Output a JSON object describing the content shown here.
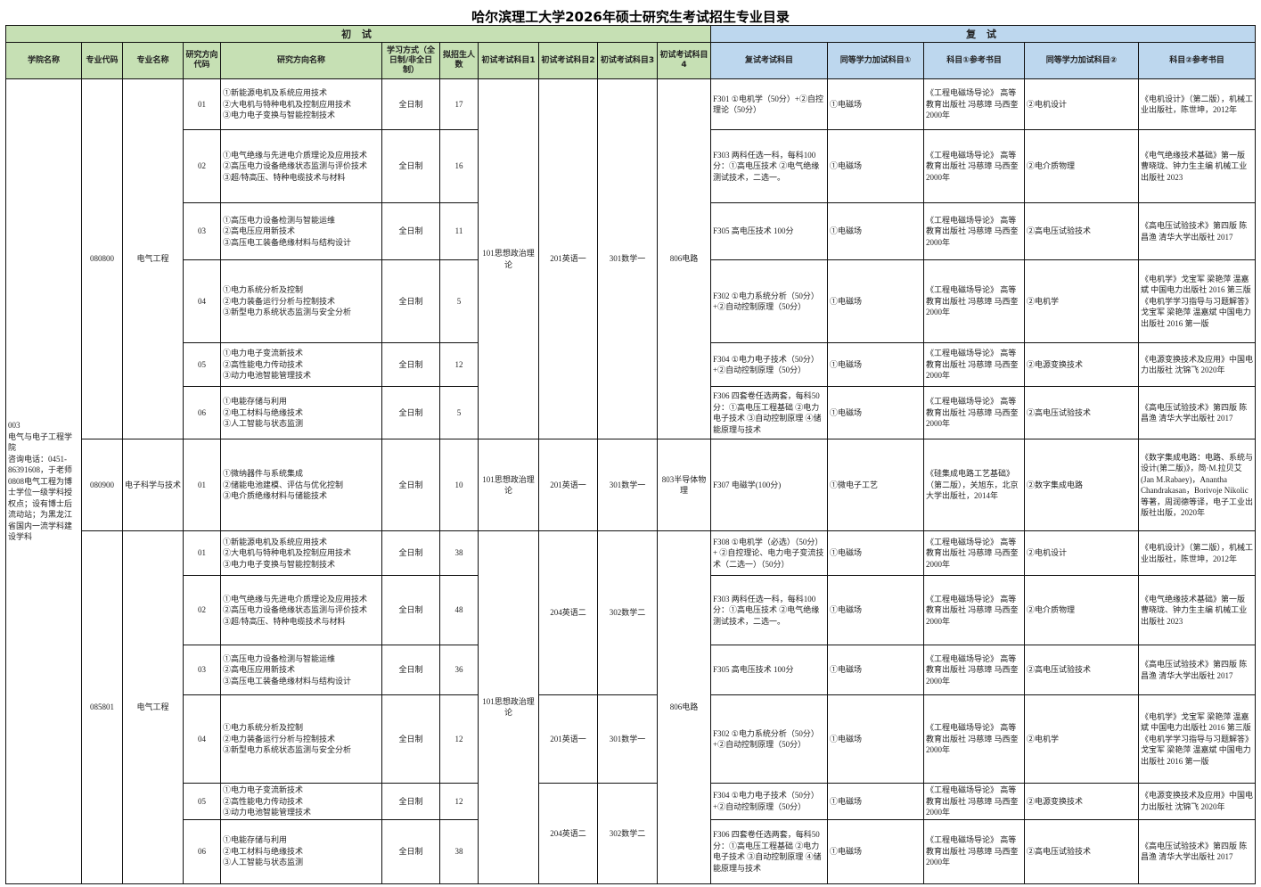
{
  "title": "哈尔滨理工大学2026年硕士研究生考试招生专业目录",
  "colors": {
    "initial_header": "#c6e0b4",
    "retest_header": "#bdd7ee"
  },
  "sections": {
    "initial": "初 试",
    "retest": "复 试"
  },
  "headers": [
    "学院名称",
    "专业代码",
    "专业名称",
    "研究方向代码",
    "研究方向名称",
    "学习方式（全日制/非全日制）",
    "拟招生人数",
    "初试考试科目1",
    "初试考试科目2",
    "初试考试科目3",
    "初试考试科目4",
    "复试考试科目",
    "同等学力加试科目①",
    "科目①参考书目",
    "同等学力加试科目②",
    "科目②参考书目"
  ],
  "college": "003\n电气与电子工程学院\n咨询电话：0451-86391608，于老师\n0808电气工程为博士学位一级学科授权点；设有博士后流动站；为黑龙江省国内一流学科建设学科",
  "majors": [
    {
      "code": "080800",
      "name": "电气工程",
      "politics": "101思想政治理论",
      "subject4": "806电路",
      "directions": [
        {
          "code": "01",
          "name": "①新能源电机及系统应用技术\n②大电机与特种电机及控制应用技术\n③电力电子变换与智能控制技术",
          "mode": "全日制",
          "quota": "17",
          "english": "201英语一",
          "math": "301数学一",
          "retest": "F301 ①电机学（50分）+②自控理论（50分）",
          "add1": "①电磁场",
          "ref1": "《工程电磁场导论》 高等教育出版社  冯慈璋 马西奎2000年",
          "add2": "②电机设计",
          "ref2": "《电机设计》（第二版），机械工业出版社，陈世坤，2012年"
        },
        {
          "code": "02",
          "name": "①电气绝缘与先进电介质理论及应用技术\n②高压电力设备绝缘状态监测与评价技术\n③超/特高压、特种电缆技术与材料",
          "mode": "全日制",
          "quota": "16",
          "english": "201英语一",
          "math": "301数学一",
          "retest": "F303 两科任选一科，每科100分：①高电压技术  ②电气绝缘测试技术，二选一。",
          "add1": "①电磁场",
          "ref1": "《工程电磁场导论》 高等教育出版社  冯慈璋 马西奎2000年",
          "add2": "②电介质物理",
          "ref2": "《电气绝缘技术基础》第一版 曹晓珑、钟力生主编 机械工业出版社 2023"
        },
        {
          "code": "03",
          "name": "①高压电力设备检测与智能运维\n②高电压应用新技术\n③高压电工装备绝缘材料与结构设计",
          "mode": "全日制",
          "quota": "11",
          "english": "201英语一",
          "math": "301数学一",
          "retest": "F305 高电压技术 100分",
          "add1": "①电磁场",
          "ref1": "《工程电磁场导论》 高等教育出版社  冯慈璋 马西奎2000年",
          "add2": "②高电压试验技术",
          "ref2": "《高电压试验技术》第四版 陈昌渔 清华大学出版社 2017"
        },
        {
          "code": "04",
          "name": "①电力系统分析及控制\n②电力装备运行分析与控制技术\n③新型电力系统状态监测与安全分析",
          "mode": "全日制",
          "quota": "5",
          "english": "201英语一",
          "math": "301数学一",
          "retest": "F302 ①电力系统分析（50分）+②自动控制原理（50分）",
          "add1": "①电磁场",
          "ref1": "《工程电磁场导论》 高等教育出版社  冯慈璋 马西奎2000年",
          "add2": "②电机学",
          "ref2": "《电机学》戈宝军 梁艳萍 温嘉斌 中国电力出版社 2016 第三版\n《电机学学习指导与习题解答》戈宝军 梁艳萍 温嘉斌 中国电力出版社  2016 第一版"
        },
        {
          "code": "05",
          "name": "①电力电子变流新技术\n②高性能电力传动技术\n③动力电池智能管理技术",
          "mode": "全日制",
          "quota": "12",
          "english": "201英语一",
          "math": "301数学一",
          "retest": "F304 ①电力电子技术（50分）+②自动控制原理（50分）",
          "add1": "①电磁场",
          "ref1": "《工程电磁场导论》 高等教育出版社  冯慈璋 马西奎2000年",
          "add2": "②电源变换技术",
          "ref2": "《电源变换技术及应用》中国电力出版社 沈锦飞 2020年"
        },
        {
          "code": "06",
          "name": "①电能存储与利用\n②电工材料与绝缘技术\n③人工智能与状态监测",
          "mode": "全日制",
          "quota": "5",
          "english": "201英语一",
          "math": "301数学一",
          "retest": "F306 四套卷任选两套，每科50分：①高电压工程基础 ②电力电子技术 ③自动控制原理 ④储能原理与技术",
          "add1": "①电磁场",
          "ref1": "《工程电磁场导论》 高等教育出版社  冯慈璋 马西奎2000年",
          "add2": "②高电压试验技术",
          "ref2": "《高电压试验技术》第四版 陈昌渔 清华大学出版社 2017"
        }
      ]
    },
    {
      "code": "080900",
      "name": "电子科学与技术",
      "politics": "101思想政治理论",
      "subject4": "803半导体物理",
      "directions": [
        {
          "code": "01",
          "name": "①微纳器件与系统集成\n②储能电池建模、评估与优化控制\n③电介质绝缘材料与储能技术",
          "mode": "全日制",
          "quota": "10",
          "english": "201英语一",
          "math": "301数学一",
          "retest": "F307 电磁学(100分)",
          "add1": "①微电子工艺",
          "ref1": "《硅集成电路工艺基础》（第二版），关旭东，北京大学出版社，2014年",
          "add2": "②数字集成电路",
          "ref2": "《数字集成电路：电路、系统与设计(第二版)》，简·M.拉贝艾(Jan M.Rabaey)，Anantha Chandrakasan，Borivoje Nikolic等著，周润德等译，电子工业出版社出版，2020年"
        }
      ]
    },
    {
      "code": "085801",
      "name": "电气工程",
      "politics": "101思想政治理论",
      "subject4": "806电路",
      "directions": [
        {
          "code": "01",
          "name": "①新能源电机及系统应用技术\n②大电机与特种电机及控制应用技术\n③电力电子变换与智能控制技术",
          "mode": "全日制",
          "quota": "38",
          "english": "204英语二",
          "math": "302数学二",
          "retest": "F308 ①电机学（必选）（50分）+ ②自控理论、电力电子变流技术（二选一）（50分）",
          "add1": "①电磁场",
          "ref1": "《工程电磁场导论》 高等教育出版社  冯慈璋 马西奎2000年",
          "add2": "②电机设计",
          "ref2": "《电机设计》（第二版），机械工业出版社，陈世坤，2012年"
        },
        {
          "code": "02",
          "name": "①电气绝缘与先进电介质理论及应用技术\n②高压电力设备绝缘状态监测与评价技术\n③超/特高压、特种电缆技术与材料",
          "mode": "全日制",
          "quota": "48",
          "english": "204英语二",
          "math": "302数学二",
          "retest": "F303 两科任选一科，每科100分：①高电压技术  ②电气绝缘测试技术，二选一。",
          "add1": "①电磁场",
          "ref1": "《工程电磁场导论》 高等教育出版社  冯慈璋 马西奎2000年",
          "add2": "②电介质物理",
          "ref2": "《电气绝缘技术基础》第一版 曹晓珑、钟力生主编 机械工业出版社 2023"
        },
        {
          "code": "03",
          "name": "①高压电力设备检测与智能运维\n②高电压应用新技术\n③高压电工装备绝缘材料与结构设计",
          "mode": "全日制",
          "quota": "36",
          "english": "204英语二",
          "math": "302数学二",
          "retest": "F305 高电压技术 100分",
          "add1": "①电磁场",
          "ref1": "《工程电磁场导论》 高等教育出版社  冯慈璋 马西奎2000年",
          "add2": "②高电压试验技术",
          "ref2": "《高电压试验技术》第四版 陈昌渔 清华大学出版社 2017"
        },
        {
          "code": "04",
          "name": "①电力系统分析及控制\n②电力装备运行分析与控制技术\n③新型电力系统状态监测与安全分析",
          "mode": "全日制",
          "quota": "12",
          "english": "201英语一",
          "math": "301数学一",
          "retest": "F302 ①电力系统分析（50分）+②自动控制原理（50分）",
          "add1": "①电磁场",
          "ref1": "《工程电磁场导论》 高等教育出版社  冯慈璋 马西奎2000年",
          "add2": "②电机学",
          "ref2": "《电机学》戈宝军 梁艳萍 温嘉斌 中国电力出版社 2016 第三版\n《电机学学习指导与习题解答》戈宝军 梁艳萍 温嘉斌 中国电力出版社  2016 第一版"
        },
        {
          "code": "05",
          "name": "①电力电子变流新技术\n②高性能电力传动技术\n③动力电池智能管理技术",
          "mode": "全日制",
          "quota": "12",
          "english": "204英语二",
          "math": "302数学二",
          "retest": "F304 ①电力电子技术（50分）+②自动控制原理（50分）",
          "add1": "①电磁场",
          "ref1": "《工程电磁场导论》 高等教育出版社  冯慈璋 马西奎2000年",
          "add2": "②电源变换技术",
          "ref2": "《电源变换技术及应用》中国电力出版社 沈锦飞 2020年"
        },
        {
          "code": "06",
          "name": "①电能存储与利用\n②电工材料与绝缘技术\n③人工智能与状态监测",
          "mode": "全日制",
          "quota": "38",
          "english": "204英语二",
          "math": "302数学二",
          "retest": "F306 四套卷任选两套，每科50分：①高电压工程基础 ②电力电子技术 ③自动控制原理 ④储能原理与技术",
          "add1": "①电磁场",
          "ref1": "《工程电磁场导论》 高等教育出版社  冯慈璋 马西奎2000年",
          "add2": "②高电压试验技术",
          "ref2": "《高电压试验技术》第四版 陈昌渔 清华大学出版社 2017"
        }
      ]
    }
  ]
}
